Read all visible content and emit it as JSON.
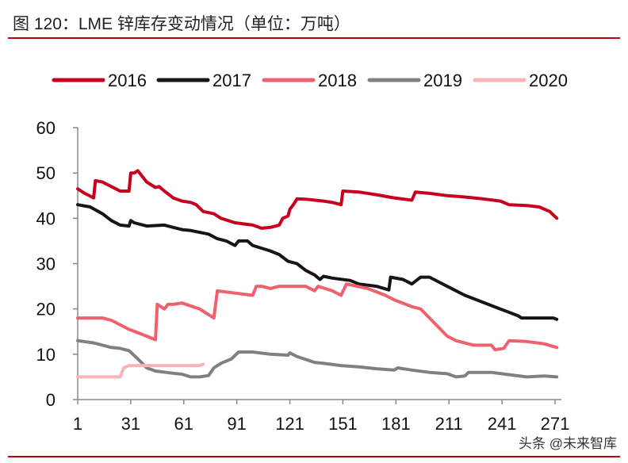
{
  "title": "图 120：LME 锌库存变动情况（单位：万吨）",
  "watermark": "头条 @未来智库",
  "chart_data": {
    "type": "line",
    "title": "图 120：LME 锌库存变动情况（单位：万吨）",
    "xlabel": "",
    "ylabel": "",
    "xlim": [
      1,
      272
    ],
    "ylim": [
      0,
      60
    ],
    "xticks": [
      1,
      31,
      61,
      91,
      121,
      151,
      181,
      211,
      241,
      271
    ],
    "yticks": [
      0,
      10,
      20,
      30,
      40,
      50,
      60
    ],
    "grid": false,
    "legend": "top",
    "series": [
      {
        "name": "2016",
        "color": "#c8001e",
        "x": [
          1,
          5,
          10,
          11,
          15,
          20,
          25,
          30,
          31,
          33,
          35,
          40,
          45,
          47,
          50,
          55,
          60,
          65,
          68,
          72,
          78,
          82,
          90,
          100,
          105,
          110,
          115,
          117,
          120,
          121,
          123,
          125,
          130,
          140,
          145,
          150,
          151,
          160,
          170,
          180,
          190,
          192,
          200,
          210,
          220,
          230,
          240,
          245,
          255,
          262,
          268,
          272
        ],
        "y": [
          46.5,
          45.5,
          44.5,
          48.3,
          48,
          47,
          46,
          46,
          50,
          50,
          50.5,
          48,
          46.8,
          47,
          46,
          44.5,
          43.8,
          43.5,
          43,
          41.5,
          41,
          40,
          39,
          38.5,
          37.8,
          38,
          38.5,
          40,
          40.5,
          42,
          43,
          44.3,
          44.2,
          43.8,
          43.5,
          43,
          46,
          45.8,
          45.2,
          44.5,
          44,
          45.8,
          45.5,
          45,
          44.7,
          44.3,
          43.8,
          43,
          42.8,
          42.5,
          41.5,
          40
        ]
      },
      {
        "name": "2017",
        "color": "#1a1414",
        "x": [
          1,
          8,
          15,
          20,
          25,
          30,
          31,
          33,
          40,
          50,
          55,
          60,
          65,
          75,
          80,
          85,
          90,
          92,
          97,
          100,
          110,
          115,
          120,
          125,
          130,
          135,
          138,
          140,
          145,
          155,
          160,
          170,
          177,
          178,
          185,
          190,
          195,
          200,
          205,
          215,
          220,
          230,
          240,
          250,
          252,
          270,
          272
        ],
        "y": [
          43,
          42.5,
          41,
          39.5,
          38.5,
          38.3,
          39.5,
          39,
          38.3,
          38.5,
          38,
          37.5,
          37.3,
          36.5,
          35.5,
          35,
          34,
          35,
          35,
          34,
          32.8,
          32,
          30.5,
          30,
          28.5,
          27.5,
          26.5,
          27.2,
          26.8,
          26.3,
          25.5,
          25,
          24.2,
          27,
          26.5,
          25.5,
          27,
          27,
          26,
          24,
          23,
          21.5,
          20,
          18.5,
          18,
          18,
          17.7
        ]
      },
      {
        "name": "2018",
        "color": "#f0606e",
        "x": [
          1,
          15,
          20,
          30,
          40,
          45,
          46,
          50,
          52,
          55,
          60,
          70,
          78,
          80,
          90,
          100,
          102,
          105,
          110,
          115,
          130,
          135,
          137,
          145,
          150,
          153,
          165,
          175,
          180,
          190,
          195,
          200,
          205,
          210,
          215,
          225,
          235,
          237,
          242,
          245,
          255,
          265,
          272
        ],
        "y": [
          18,
          18,
          17.5,
          15.5,
          14,
          13.2,
          21,
          20,
          21,
          21,
          21.3,
          20,
          18,
          24,
          23.5,
          23,
          25,
          25,
          24.5,
          25,
          25,
          24,
          25,
          24,
          23,
          25.5,
          24.5,
          23,
          22,
          20.5,
          20,
          18,
          16,
          14,
          13,
          12,
          12,
          11,
          11.3,
          13,
          12.8,
          12.3,
          11.5
        ]
      },
      {
        "name": "2019",
        "color": "#808080",
        "x": [
          1,
          10,
          20,
          25,
          30,
          35,
          40,
          45,
          55,
          60,
          65,
          70,
          75,
          78,
          82,
          88,
          92,
          100,
          110,
          120,
          121,
          125,
          135,
          140,
          150,
          160,
          170,
          180,
          182,
          190,
          200,
          210,
          215,
          220,
          222,
          235,
          245,
          255,
          265,
          272
        ],
        "y": [
          13,
          12.5,
          11.5,
          11.3,
          10.8,
          9,
          7,
          6.3,
          5.8,
          5.6,
          5,
          5,
          5.3,
          7,
          8,
          9,
          10.5,
          10.5,
          10,
          9.8,
          10.3,
          9.5,
          8.2,
          8,
          7.5,
          7.2,
          6.8,
          6.5,
          7,
          6.5,
          6,
          5.7,
          5,
          5.2,
          6,
          6,
          5.5,
          5,
          5.2,
          5
        ]
      },
      {
        "name": "2020",
        "color": "#f9b4b8",
        "x": [
          1,
          25,
          27,
          30,
          40,
          60,
          70,
          72
        ],
        "y": [
          5,
          5,
          7,
          7.5,
          7.5,
          7.5,
          7.5,
          7.8
        ]
      }
    ]
  }
}
